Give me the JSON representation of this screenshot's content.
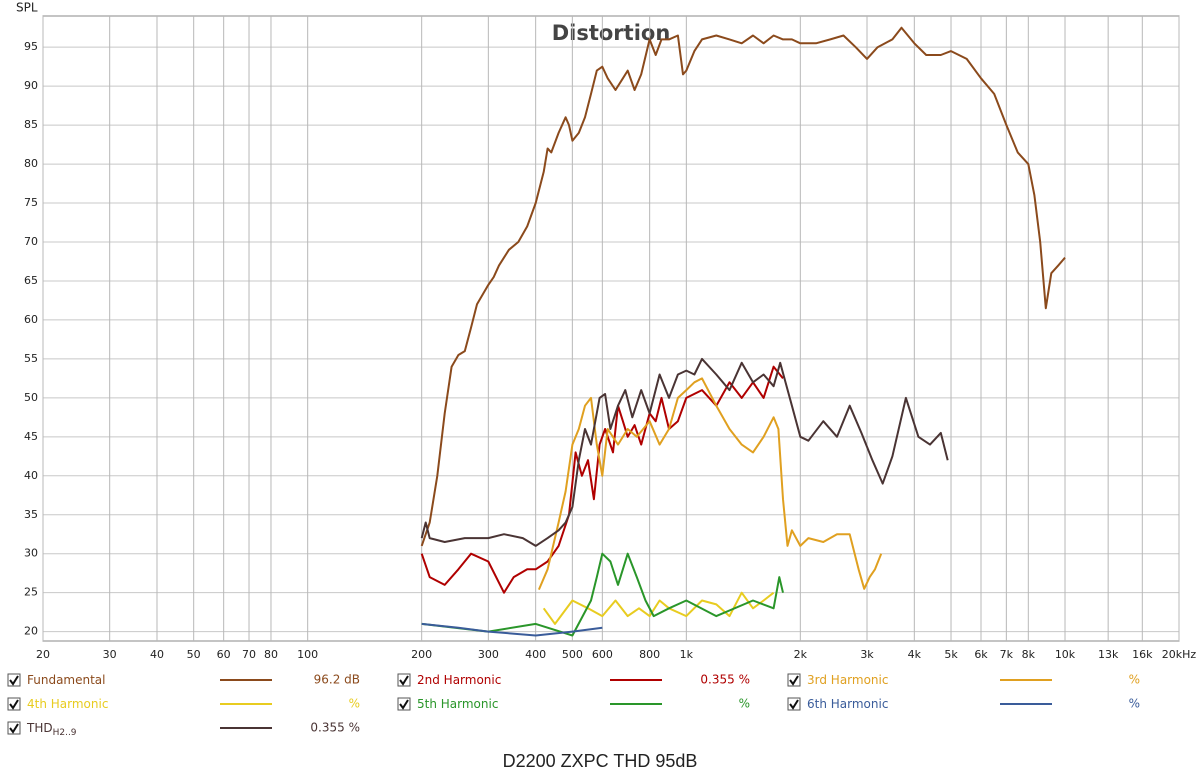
{
  "chart_data": {
    "type": "line",
    "title": "Distortion",
    "y_label": "SPL",
    "footer": "D2200 ZXPC THD 95dB",
    "log_x": true,
    "grid": true,
    "xlim": [
      20,
      20000
    ],
    "ylim": [
      18.8,
      99
    ],
    "xticks": [
      20,
      30,
      40,
      50,
      60,
      70,
      80,
      100,
      200,
      300,
      400,
      500,
      600,
      800,
      {
        "value": 1000,
        "label": "1k"
      },
      {
        "value": 2000,
        "label": "2k"
      },
      {
        "value": 3000,
        "label": "3k"
      },
      {
        "value": 4000,
        "label": "4k"
      },
      {
        "value": 5000,
        "label": "5k"
      },
      {
        "value": 6000,
        "label": "6k"
      },
      {
        "value": 7000,
        "label": "7k"
      },
      {
        "value": 8000,
        "label": "8k"
      },
      {
        "value": 10000,
        "label": "10k"
      },
      {
        "value": 13000,
        "label": "13k"
      },
      {
        "value": 16000,
        "label": "16k"
      },
      {
        "value": 20000,
        "label": "20kHz"
      }
    ],
    "yticks": [
      20,
      25,
      30,
      35,
      40,
      45,
      50,
      55,
      60,
      65,
      70,
      75,
      80,
      85,
      90,
      95
    ],
    "series": [
      {
        "name": "Fundamental",
        "color": "#8b4a1c",
        "readout": "96.2 dB",
        "x": [
          200,
          210,
          220,
          230,
          240,
          250,
          260,
          270,
          280,
          300,
          310,
          320,
          330,
          340,
          360,
          380,
          400,
          420,
          430,
          440,
          460,
          480,
          490,
          500,
          520,
          540,
          560,
          580,
          600,
          620,
          650,
          680,
          700,
          730,
          760,
          800,
          830,
          860,
          900,
          950,
          980,
          1000,
          1050,
          1100,
          1200,
          1300,
          1400,
          1500,
          1600,
          1700,
          1800,
          1900,
          2000,
          2200,
          2400,
          2600,
          2800,
          3000,
          3200,
          3500,
          3700,
          4000,
          4300,
          4700,
          5000,
          5500,
          6000,
          6500,
          7000,
          7500,
          8000,
          8300,
          8600,
          8900,
          9200,
          9600,
          10000
        ],
        "values": [
          31,
          34,
          40,
          48,
          54,
          55.5,
          56,
          59,
          62,
          64.5,
          65.5,
          67,
          68,
          69,
          70,
          72,
          75,
          79,
          82,
          81.5,
          84,
          86,
          85,
          83,
          84,
          86,
          89,
          92,
          92.5,
          91,
          89.5,
          91,
          92,
          89.5,
          91.5,
          96,
          94,
          96,
          96,
          96.5,
          91.5,
          92,
          94.5,
          96,
          96.5,
          96,
          95.5,
          96.5,
          95.5,
          96.5,
          96,
          96,
          95.5,
          95.5,
          96,
          96.5,
          95,
          93.5,
          95,
          96,
          97.5,
          95.5,
          94,
          94,
          94.5,
          93.5,
          91,
          89,
          85,
          81.5,
          80,
          76,
          70,
          61.5,
          66,
          67,
          68
        ]
      },
      {
        "name": "2nd Harmonic",
        "color": "#b00000",
        "readout": "0.355 %",
        "x": [
          200,
          210,
          230,
          250,
          270,
          300,
          330,
          350,
          380,
          400,
          430,
          460,
          490,
          510,
          530,
          550,
          570,
          590,
          610,
          640,
          660,
          680,
          700,
          730,
          760,
          800,
          830,
          860,
          900,
          950,
          1000,
          1100,
          1200,
          1300,
          1400,
          1500,
          1600,
          1700,
          1800
        ],
        "values": [
          30,
          27,
          26,
          28,
          30,
          29,
          25,
          27,
          28,
          28,
          29,
          31,
          35,
          43,
          40,
          42,
          37,
          44,
          46,
          43,
          49,
          47,
          45,
          46.5,
          44,
          48,
          47,
          50,
          46,
          47,
          50,
          51,
          49,
          52,
          50,
          52,
          50,
          54,
          52.5
        ]
      },
      {
        "name": "3rd Harmonic",
        "color": "#e0a020",
        "readout": "%",
        "x": [
          408,
          430,
          460,
          480,
          500,
          520,
          540,
          560,
          580,
          600,
          620,
          660,
          700,
          740,
          800,
          850,
          900,
          950,
          1000,
          1050,
          1100,
          1200,
          1300,
          1400,
          1500,
          1600,
          1700,
          1750,
          1800,
          1850,
          1900,
          2000,
          2100,
          2300,
          2500,
          2700,
          2850,
          2950,
          3050,
          3150,
          3270
        ],
        "values": [
          25.4,
          28,
          34,
          38,
          44,
          46,
          49,
          50,
          44,
          40,
          46,
          44,
          46,
          45,
          47,
          44,
          46,
          50,
          51,
          52,
          52.5,
          49,
          46,
          44,
          43,
          45,
          47.5,
          46,
          37,
          31,
          33,
          31,
          32,
          31.5,
          32.5,
          32.5,
          28,
          25.5,
          27,
          28,
          30
        ]
      },
      {
        "name": "4th Harmonic",
        "color": "#e8cc20",
        "readout": "%",
        "x": [
          420,
          450,
          500,
          550,
          600,
          650,
          700,
          750,
          800,
          850,
          900,
          1000,
          1100,
          1200,
          1300,
          1400,
          1500,
          1600,
          1700
        ],
        "values": [
          23,
          21,
          24,
          23,
          22,
          24,
          22,
          23,
          22,
          24,
          23,
          22,
          24,
          23.5,
          22,
          25,
          23,
          24,
          25
        ]
      },
      {
        "name": "5th Harmonic",
        "color": "#2a962a",
        "readout": "%",
        "x": [
          200,
          300,
          400,
          500,
          560,
          580,
          600,
          630,
          660,
          700,
          740,
          780,
          820,
          900,
          1000,
          1200,
          1500,
          1700,
          1760,
          1800
        ],
        "values": [
          21,
          20,
          21,
          19.5,
          24,
          27,
          30,
          29,
          26,
          30,
          27,
          24,
          22,
          23,
          24,
          22,
          24,
          23,
          27,
          25
        ]
      },
      {
        "name": "6th Harmonic",
        "color": "#3a5c9a",
        "readout": "%",
        "x": [
          200,
          250,
          300,
          400,
          500,
          600
        ],
        "values": [
          21,
          20.5,
          20,
          19.5,
          20,
          20.5
        ]
      },
      {
        "name": "THD",
        "name_sub": "H2..9",
        "color": "#4a3434",
        "readout": "0.355 %",
        "x": [
          200,
          205,
          210,
          230,
          260,
          300,
          330,
          370,
          400,
          430,
          460,
          480,
          500,
          520,
          540,
          560,
          590,
          610,
          630,
          660,
          690,
          720,
          760,
          800,
          850,
          900,
          950,
          1000,
          1050,
          1100,
          1200,
          1300,
          1400,
          1500,
          1600,
          1700,
          1770,
          1900,
          2000,
          2100,
          2300,
          2500,
          2700,
          2900,
          3100,
          3300,
          3500,
          3800,
          4100,
          4400,
          4700,
          4900
        ],
        "values": [
          32,
          34,
          32,
          31.5,
          32,
          32,
          32.5,
          32,
          31,
          32,
          33,
          34,
          36,
          42,
          46,
          44,
          50,
          50.5,
          46,
          49,
          51,
          47.5,
          51,
          48,
          53,
          50,
          53,
          53.5,
          53,
          55,
          53,
          51,
          54.5,
          52,
          53,
          51.5,
          54.5,
          49,
          45,
          44.5,
          47,
          45,
          49,
          45.5,
          42,
          39,
          42.5,
          50,
          45,
          44,
          45.5,
          42
        ]
      }
    ]
  }
}
